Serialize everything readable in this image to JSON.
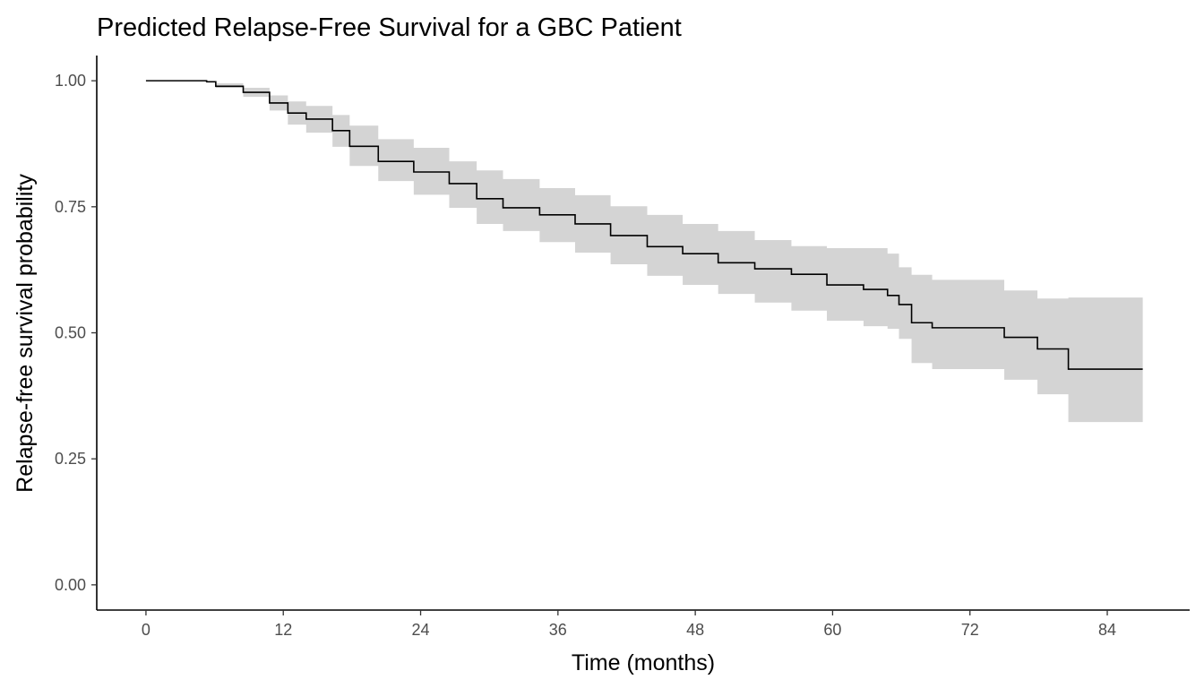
{
  "chart_data": {
    "type": "line",
    "subtype": "step survival curve with confidence band",
    "title": "Predicted Relapse-Free Survival for a GBC Patient",
    "xlabel": "Time (months)",
    "ylabel": "Relapse-free survival probability",
    "xlim": [
      -4.3,
      91.2
    ],
    "ylim": [
      -0.05,
      1.05
    ],
    "x_ticks": [
      0,
      12,
      24,
      36,
      48,
      60,
      72,
      84
    ],
    "x_tick_labels": [
      "0",
      "12",
      "24",
      "36",
      "48",
      "60",
      "72",
      "84"
    ],
    "y_ticks": [
      0,
      0.25,
      0.5,
      0.75,
      1.0
    ],
    "y_tick_labels": [
      "0.00",
      "0.25",
      "0.50",
      "0.75",
      "1.00"
    ],
    "grid": false,
    "legend": "none",
    "colors": {
      "line": "#000000",
      "band": "#d4d4d4",
      "axis": "#000000",
      "tick_text": "#4d4d4d"
    },
    "series": [
      {
        "name": "survival",
        "x": [
          0,
          3.0,
          5.3,
          6.1,
          8.5,
          10.8,
          12.4,
          14.0,
          16.3,
          17.8,
          20.3,
          23.4,
          26.5,
          28.9,
          31.2,
          34.4,
          37.5,
          40.6,
          43.8,
          46.9,
          50.0,
          53.2,
          56.4,
          59.5,
          62.7,
          64.8,
          65.8,
          66.9,
          68.7,
          75.0,
          77.9,
          80.6,
          87.1
        ],
        "survival": [
          1.0,
          1.0,
          0.998,
          0.989,
          0.977,
          0.956,
          0.936,
          0.924,
          0.901,
          0.87,
          0.84,
          0.819,
          0.796,
          0.766,
          0.748,
          0.734,
          0.716,
          0.693,
          0.671,
          0.657,
          0.639,
          0.627,
          0.616,
          0.595,
          0.586,
          0.574,
          0.556,
          0.52,
          0.51,
          0.491,
          0.468,
          0.428,
          0.428
        ],
        "upper": [
          1.0,
          1.0,
          0.998,
          0.995,
          0.986,
          0.971,
          0.959,
          0.95,
          0.932,
          0.911,
          0.884,
          0.867,
          0.84,
          0.822,
          0.805,
          0.787,
          0.773,
          0.751,
          0.734,
          0.716,
          0.702,
          0.684,
          0.672,
          0.668,
          0.668,
          0.657,
          0.63,
          0.615,
          0.605,
          0.584,
          0.568,
          0.57,
          0.57
        ],
        "lower": [
          1.0,
          1.0,
          0.996,
          0.986,
          0.968,
          0.941,
          0.913,
          0.897,
          0.869,
          0.831,
          0.801,
          0.774,
          0.748,
          0.716,
          0.702,
          0.68,
          0.659,
          0.636,
          0.613,
          0.595,
          0.577,
          0.56,
          0.544,
          0.524,
          0.513,
          0.508,
          0.488,
          0.44,
          0.428,
          0.407,
          0.378,
          0.323,
          0.323
        ]
      }
    ]
  }
}
